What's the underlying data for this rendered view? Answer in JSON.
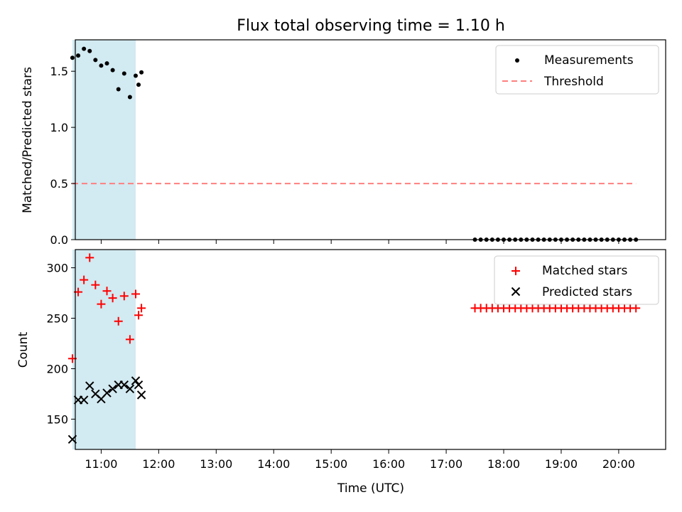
{
  "title": "Flux total observing time = 1.10 h",
  "xlabel": "Time (UTC)",
  "chart_data": [
    {
      "type": "scatter",
      "ylabel": "Matched/Predicted stars",
      "xlim": [
        "10:33",
        "20:49"
      ],
      "ylim": [
        0,
        1.78
      ],
      "yticks": [
        0.0,
        0.5,
        1.0,
        1.5
      ],
      "ytick_labels": [
        "0.0",
        "0.5",
        "1.0",
        "1.5"
      ],
      "grid": false,
      "legend": "top-right",
      "shaded_interval": {
        "start": "10:30",
        "end": "11:36",
        "color": "#add8e6"
      },
      "measurements": {
        "name": "Measurements",
        "color": "#000000",
        "x": [
          "10:30",
          "10:36",
          "10:42",
          "10:48",
          "10:54",
          "11:00",
          "11:06",
          "11:12",
          "11:18",
          "11:24",
          "11:30",
          "11:36",
          "11:39",
          "11:42"
        ],
        "y": [
          1.62,
          1.64,
          1.7,
          1.68,
          1.6,
          1.55,
          1.57,
          1.51,
          1.34,
          1.48,
          1.27,
          1.46,
          1.38,
          1.49
        ]
      },
      "late_measurements": {
        "start": "17:30",
        "end": "20:18",
        "step_minutes": 6,
        "y": 0.0
      },
      "threshold": {
        "name": "Threshold",
        "color": "#ff7f7f",
        "style": "dashed",
        "y": 0.5,
        "x_range": [
          "10:30",
          "20:18"
        ]
      }
    },
    {
      "type": "scatter",
      "ylabel": "Count",
      "ylim": [
        120,
        318
      ],
      "yticks": [
        150,
        200,
        250,
        300
      ],
      "ytick_labels": [
        "150",
        "200",
        "250",
        "300"
      ],
      "xticks": [
        "11:00",
        "12:00",
        "13:00",
        "14:00",
        "15:00",
        "16:00",
        "17:00",
        "18:00",
        "19:00",
        "20:00"
      ],
      "grid": false,
      "legend": "top-right",
      "shaded_interval": {
        "start": "10:30",
        "end": "11:36",
        "color": "#add8e6"
      },
      "series": [
        {
          "name": "Matched stars",
          "marker": "+",
          "color": "#ff0000",
          "x": [
            "10:30",
            "10:36",
            "10:42",
            "10:48",
            "10:54",
            "11:00",
            "11:06",
            "11:12",
            "11:18",
            "11:24",
            "11:30",
            "11:36",
            "11:39",
            "11:42"
          ],
          "y": [
            210,
            276,
            288,
            310,
            283,
            264,
            277,
            270,
            247,
            272,
            229,
            274,
            253,
            260
          ]
        },
        {
          "name": "Predicted stars",
          "marker": "x",
          "color": "#000000",
          "x": [
            "10:30",
            "10:36",
            "10:42",
            "10:48",
            "10:54",
            "11:00",
            "11:06",
            "11:12",
            "11:18",
            "11:24",
            "11:30",
            "11:36",
            "11:39",
            "11:42"
          ],
          "y": [
            130,
            169,
            169,
            183,
            175,
            170,
            176,
            180,
            184,
            184,
            180,
            188,
            184,
            174
          ]
        }
      ],
      "late_matched": {
        "start": "17:30",
        "end": "20:18",
        "step_minutes": 6,
        "y": 260
      }
    }
  ]
}
